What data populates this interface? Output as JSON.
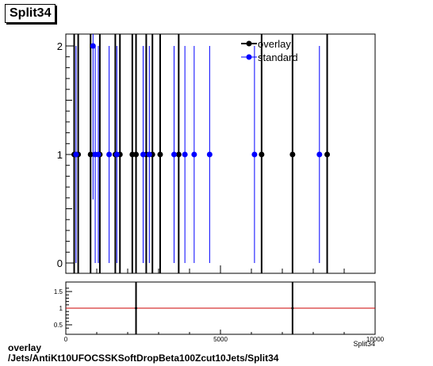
{
  "title": "Split34",
  "caption": {
    "line1": "overlay",
    "line2": "/Jets/AntiKt10UFOCSSKSoftDropBeta100Zcut10Jets/Split34"
  },
  "colors": {
    "overlay": "#000000",
    "standard": "#0000ff",
    "ratio_line": "#cc0000"
  },
  "chart_data": [
    {
      "type": "scatter",
      "xlim": [
        0,
        10000
      ],
      "ylim": [
        0,
        2.1
      ],
      "y_ticks": [
        "0",
        "1",
        "2"
      ],
      "legend_position": "top-right",
      "series": [
        {
          "name": "overlay",
          "color": "#000000",
          "points": [
            {
              "x": 270,
              "y": 1
            },
            {
              "x": 400,
              "y": 1
            },
            {
              "x": 800,
              "y": 1
            },
            {
              "x": 1100,
              "y": 1
            },
            {
              "x": 1600,
              "y": 1
            },
            {
              "x": 1750,
              "y": 1
            },
            {
              "x": 2150,
              "y": 1
            },
            {
              "x": 2270,
              "y": 1
            },
            {
              "x": 2600,
              "y": 1
            },
            {
              "x": 2800,
              "y": 1
            },
            {
              "x": 3050,
              "y": 1
            },
            {
              "x": 3650,
              "y": 1
            },
            {
              "x": 6330,
              "y": 1
            },
            {
              "x": 7330,
              "y": 1
            },
            {
              "x": 8450,
              "y": 1
            }
          ]
        },
        {
          "name": "standard",
          "color": "#0000ff",
          "points": [
            {
              "x": 330,
              "y": 1
            },
            {
              "x": 880,
              "y": 2
            },
            {
              "x": 950,
              "y": 1
            },
            {
              "x": 1050,
              "y": 1
            },
            {
              "x": 1400,
              "y": 1
            },
            {
              "x": 1650,
              "y": 1
            },
            {
              "x": 2500,
              "y": 1
            },
            {
              "x": 2700,
              "y": 1
            },
            {
              "x": 3500,
              "y": 1
            },
            {
              "x": 3850,
              "y": 1
            },
            {
              "x": 4150,
              "y": 1
            },
            {
              "x": 4650,
              "y": 1
            },
            {
              "x": 6100,
              "y": 1
            },
            {
              "x": 8200,
              "y": 1
            }
          ]
        }
      ]
    },
    {
      "type": "scatter",
      "xlim": [
        0,
        10000
      ],
      "ylim": [
        0.3,
        1.75
      ],
      "x_ticks": [
        "0",
        "5000",
        "10000"
      ],
      "y_ticks": [
        "0.5",
        "1",
        "1.5"
      ],
      "xlabel": "Split34",
      "reference_line": 1,
      "points": [
        {
          "x": 2270,
          "y": 1
        },
        {
          "x": 7330,
          "y": 1
        }
      ]
    }
  ]
}
